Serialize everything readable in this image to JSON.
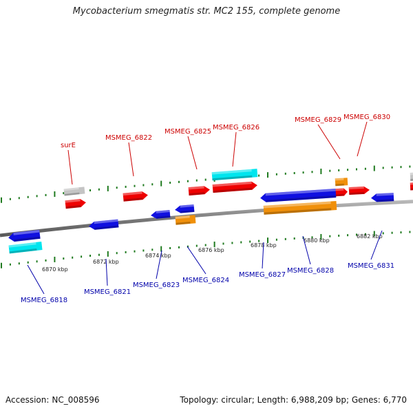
{
  "title": "Mycobacterium smegmatis str. MC2 155, complete genome",
  "footer": {
    "accession_label": "Accession:",
    "accession": "NC_008596",
    "topology_label": "Topology:",
    "topology": "circular",
    "length_label": "Length:",
    "length": "6,988,209 bp",
    "genes_label": "Genes:",
    "genes": "6,770"
  },
  "colors": {
    "forward_label": "#cc0000",
    "reverse_label": "#0000aa",
    "backbone": "#8a8a8a",
    "tick": "#1f7a1f",
    "red": "#ee0000",
    "blue": "#1010e0",
    "cyan": "#00e5ee",
    "orange": "#f0900a",
    "gray": "#c4c4c4"
  },
  "ruler_labels": [
    "6870 kbp",
    "6872 kbp",
    "6874 kbp",
    "6876 kbp",
    "6878 kbp",
    "6880 kbp",
    "6882 kbp"
  ],
  "forward_gene_labels": [
    "surE",
    "MSMEG_6822",
    "MSMEG_6825",
    "MSMEG_6826",
    "MSMEG_6829",
    "MSMEG_6830"
  ],
  "reverse_gene_labels": [
    "MSMEG_6818",
    "MSMEG_6821",
    "MSMEG_6823",
    "MSMEG_6824",
    "MSMEG_6827",
    "MSMEG_6828",
    "MSMEG_6831"
  ],
  "features": [
    {
      "strand": "+",
      "color": "gray"
    },
    {
      "strand": "+",
      "color": "red",
      "gene": "surE"
    },
    {
      "strand": "+",
      "color": "red",
      "gene": "MSMEG_6822"
    },
    {
      "strand": "+",
      "color": "red",
      "gene": "MSMEG_6825"
    },
    {
      "strand": "+",
      "color": "cyan"
    },
    {
      "strand": "+",
      "color": "red",
      "gene": "MSMEG_6826"
    },
    {
      "strand": "+",
      "color": "orange"
    },
    {
      "strand": "+",
      "color": "red",
      "gene": "MSMEG_6829"
    },
    {
      "strand": "+",
      "color": "red",
      "gene": "MSMEG_6830"
    },
    {
      "strand": "+",
      "color": "gray"
    },
    {
      "strand": "+",
      "color": "red"
    },
    {
      "strand": "-",
      "color": "blue",
      "gene": "MSMEG_6818"
    },
    {
      "strand": "-",
      "color": "cyan"
    },
    {
      "strand": "-",
      "color": "blue",
      "gene": "MSMEG_6821"
    },
    {
      "strand": "-",
      "color": "blue",
      "gene": "MSMEG_6823"
    },
    {
      "strand": "-",
      "color": "blue",
      "gene": "MSMEG_6824"
    },
    {
      "strand": "-",
      "color": "orange"
    },
    {
      "strand": "-",
      "color": "blue",
      "gene": "MSMEG_6827"
    },
    {
      "strand": "-",
      "color": "orange"
    },
    {
      "strand": "-",
      "color": "blue",
      "gene": "MSMEG_6831"
    }
  ]
}
